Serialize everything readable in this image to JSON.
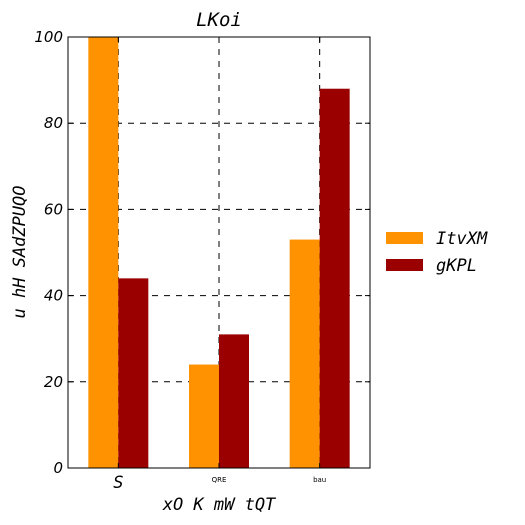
{
  "chart_data": {
    "type": "bar",
    "title": "LKoi",
    "xlabel": "xO K  mW tQT",
    "ylabel": "u hH SAdZPUQO",
    "categories": [
      "S",
      "QRE",
      "bau"
    ],
    "category_label_sizes": [
      "large",
      "small",
      "small"
    ],
    "series": [
      {
        "name": "ItvXM",
        "values": [
          100,
          24,
          53
        ],
        "color": "#ff9200"
      },
      {
        "name": "gKPL",
        "values": [
          44,
          31,
          88
        ],
        "color": "#9b0000"
      }
    ],
    "ylim": [
      0,
      100
    ],
    "yticks": [
      0,
      20,
      40,
      60,
      80,
      100
    ],
    "grid": true,
    "legend_position": "right"
  }
}
